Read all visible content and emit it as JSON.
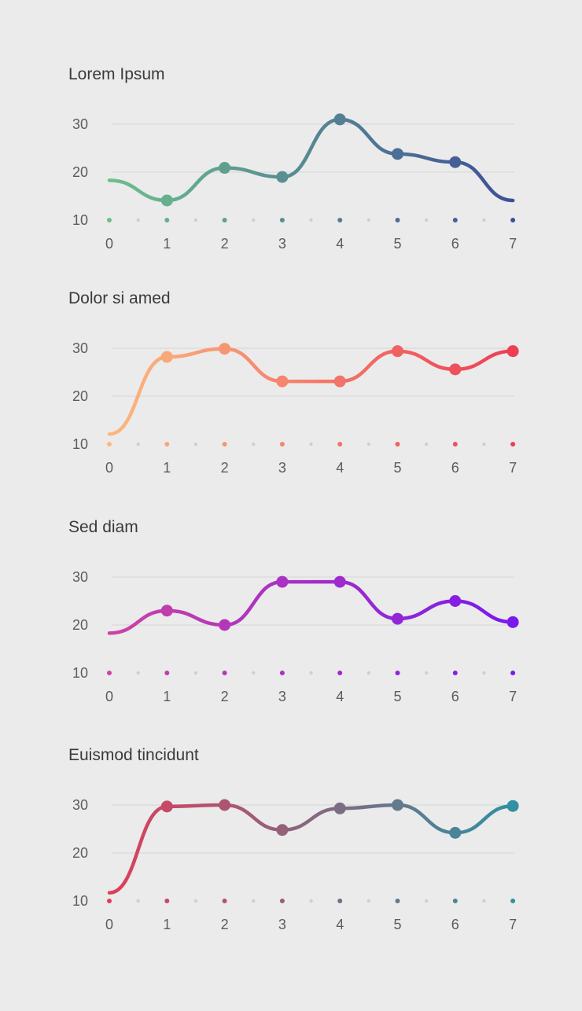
{
  "chart_data": [
    {
      "type": "line",
      "title": "Lorem Ipsum",
      "x": [
        0,
        1,
        2,
        3,
        4,
        5,
        6,
        7
      ],
      "series": [
        {
          "values": [
            18.3,
            14.1,
            20.9,
            19.0,
            31.0,
            23.8,
            22.1,
            14.1
          ]
        }
      ],
      "xlabel": "",
      "ylabel": "",
      "xticks": [
        "0",
        "1",
        "2",
        "3",
        "4",
        "5",
        "6",
        "7"
      ],
      "yticks": [
        "10",
        "20",
        "30"
      ],
      "ylim": [
        10,
        30
      ],
      "grid": true,
      "markers": [
        false,
        true,
        true,
        true,
        true,
        true,
        true,
        false
      ],
      "gradient": [
        "#6dbf8d",
        "#3e4f99"
      ]
    },
    {
      "type": "line",
      "title": "Dolor si amed",
      "x": [
        0,
        1,
        2,
        3,
        4,
        5,
        6,
        7
      ],
      "series": [
        {
          "values": [
            12.1,
            28.2,
            29.9,
            23.1,
            23.1,
            29.4,
            25.6,
            29.4
          ]
        }
      ],
      "xlabel": "",
      "ylabel": "",
      "xticks": [
        "0",
        "1",
        "2",
        "3",
        "4",
        "5",
        "6",
        "7"
      ],
      "yticks": [
        "10",
        "20",
        "30"
      ],
      "ylim": [
        10,
        30
      ],
      "grid": true,
      "markers": [
        false,
        true,
        true,
        true,
        true,
        true,
        true,
        true
      ],
      "gradient": [
        "#fbb97f",
        "#ec3f56"
      ]
    },
    {
      "type": "line",
      "title": "Sed diam",
      "x": [
        0,
        1,
        2,
        3,
        4,
        5,
        6,
        7
      ],
      "series": [
        {
          "values": [
            18.3,
            23.0,
            20.0,
            29.0,
            29.0,
            21.3,
            25.0,
            20.6
          ]
        }
      ],
      "xlabel": "",
      "ylabel": "",
      "xticks": [
        "0",
        "1",
        "2",
        "3",
        "4",
        "5",
        "6",
        "7"
      ],
      "yticks": [
        "10",
        "20",
        "30"
      ],
      "ylim": [
        10,
        30
      ],
      "grid": true,
      "markers": [
        false,
        true,
        true,
        true,
        true,
        true,
        true,
        true
      ],
      "gradient": [
        "#cc43a4",
        "#7a19ed"
      ]
    },
    {
      "type": "line",
      "title": "Euismod tincidunt",
      "x": [
        0,
        1,
        2,
        3,
        4,
        5,
        6,
        7
      ],
      "series": [
        {
          "values": [
            11.7,
            29.7,
            30.0,
            24.8,
            29.3,
            30.0,
            24.2,
            29.8
          ]
        }
      ],
      "xlabel": "",
      "ylabel": "",
      "xticks": [
        "0",
        "1",
        "2",
        "3",
        "4",
        "5",
        "6",
        "7"
      ],
      "yticks": [
        "10",
        "20",
        "30"
      ],
      "ylim": [
        10,
        30
      ],
      "grid": true,
      "markers": [
        false,
        true,
        true,
        true,
        true,
        true,
        true,
        true
      ],
      "gradient": [
        "#de3e5c",
        "#3190a2"
      ]
    }
  ]
}
